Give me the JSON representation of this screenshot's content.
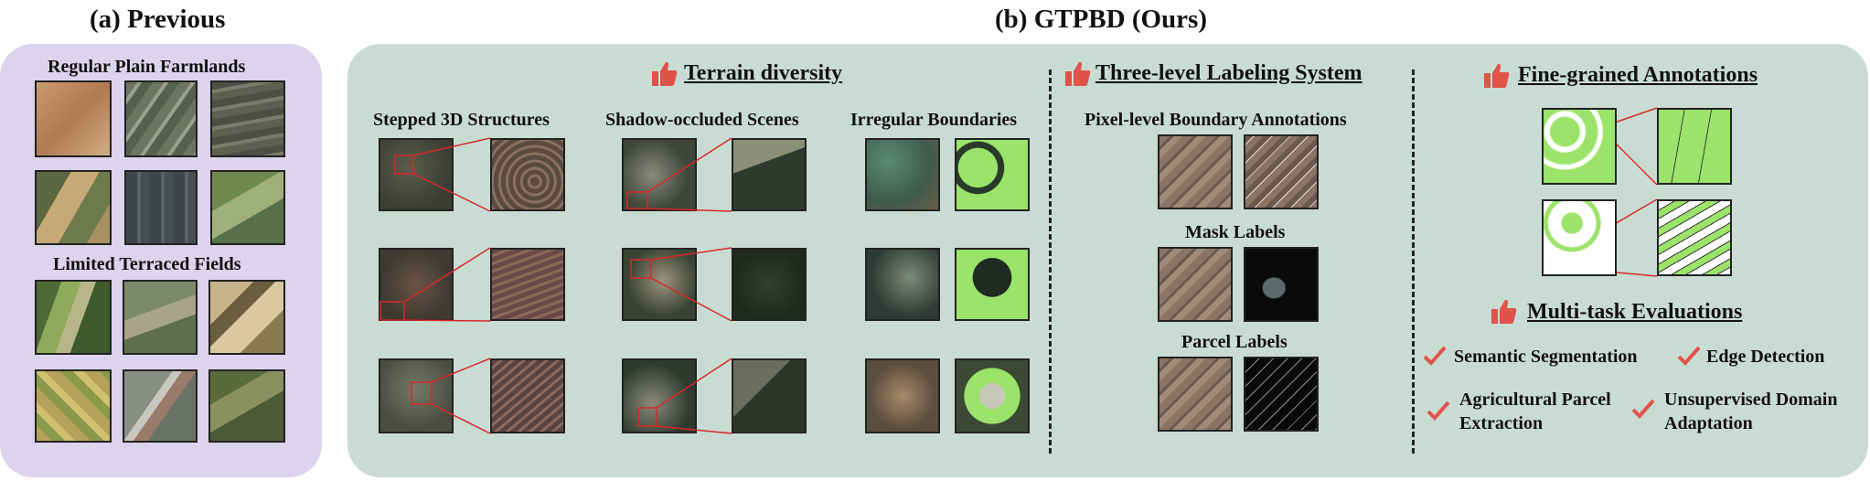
{
  "previous": {
    "title": "(a) Previous",
    "group1": "Regular Plain Farmlands",
    "group2": "Limited Terraced Fields"
  },
  "ours": {
    "title": "(b) GTPBD (Ours)",
    "terrain": {
      "heading": "Terrain diversity",
      "columns": [
        "Stepped 3D Structures",
        "Shadow-occluded Scenes",
        "Irregular Boundaries"
      ]
    },
    "labeling": {
      "heading": "Three-level Labeling System",
      "levels": [
        "Pixel-level Boundary Annotations",
        "Mask Labels",
        "Parcel Labels"
      ]
    },
    "annotations": {
      "heading": "Fine-grained Annotations"
    },
    "tasks": {
      "heading": "Multi-task Evaluations",
      "items": [
        "Semantic Segmentation",
        "Edge Detection",
        "Agricultural Parcel Extraction",
        "Unsupervised Domain Adaptation"
      ]
    }
  },
  "colors": {
    "previous_panel": "#dcd3ec",
    "ours_panel": "#c9dcd3",
    "accent": "#e0534a",
    "mask_green": "#9be36a"
  }
}
